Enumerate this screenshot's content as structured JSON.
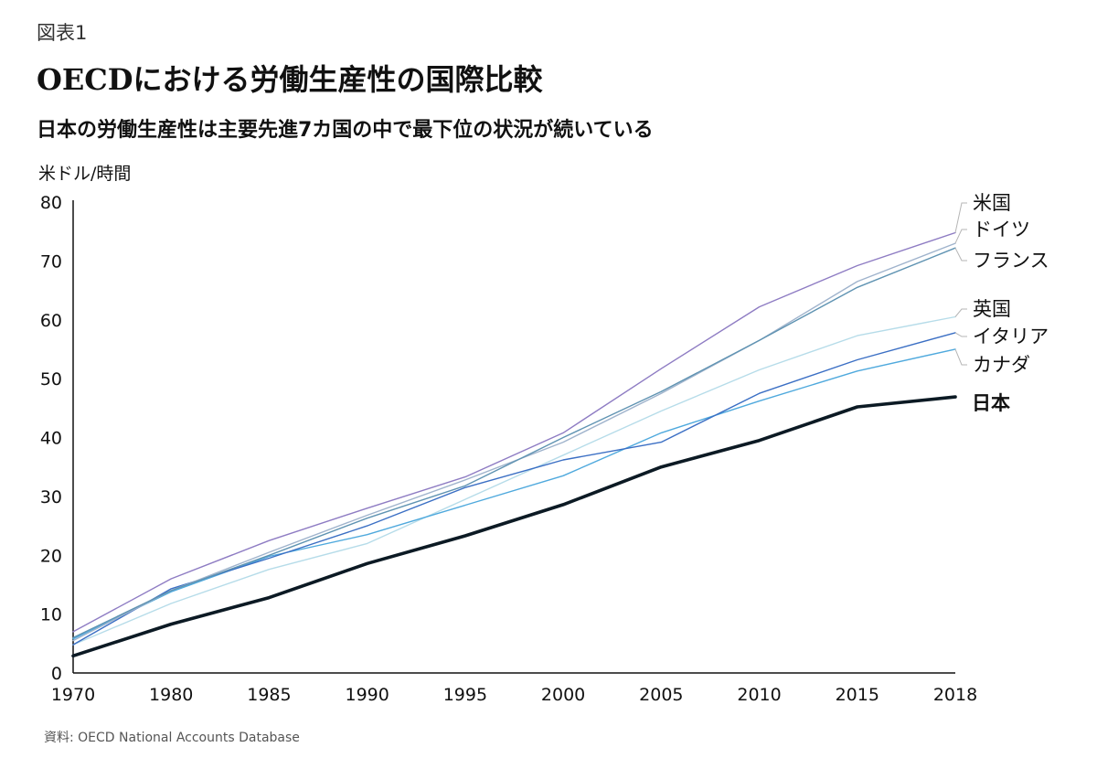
{
  "header": {
    "figure_label": "図表1",
    "title": "OECDにおける労働生産性の国際比較",
    "subtitle": "日本の労働生産性は主要先進7カ国の中で最下位の状況が続いている"
  },
  "footer": {
    "source": "資料: OECD National Accounts Database"
  },
  "chart_data": {
    "type": "line",
    "title": "OECDにおける労働生産性の国際比較",
    "ylabel": "米ドル/時間",
    "xlabel": "",
    "x": [
      1970,
      1980,
      1985,
      1990,
      1995,
      2000,
      2005,
      2010,
      2015,
      2018
    ],
    "ylim": [
      0,
      80
    ],
    "yticks": [
      0,
      10,
      20,
      30,
      40,
      50,
      60,
      70,
      80
    ],
    "grid": false,
    "legend_position": "right",
    "series": [
      {
        "name": "米国",
        "color": "#8e7cc3",
        "width": 1.4,
        "values": [
          7,
          16,
          22.5,
          28,
          33.3,
          40.8,
          51.7,
          62.2,
          69.2,
          74.8
        ]
      },
      {
        "name": "ドイツ",
        "color": "#9fb3cc",
        "width": 1.4,
        "values": [
          5.5,
          14,
          20.5,
          26.8,
          32.8,
          39.2,
          47.5,
          56.5,
          66.5,
          73
        ]
      },
      {
        "name": "フランス",
        "color": "#5f93b2",
        "width": 1.4,
        "values": [
          6,
          14,
          20,
          26.3,
          31.8,
          40,
          47.8,
          56.5,
          65.5,
          72.2
        ]
      },
      {
        "name": "英国",
        "color": "#b6dce9",
        "width": 1.4,
        "values": [
          4.8,
          11.8,
          17.6,
          22,
          29.5,
          37,
          44.5,
          51.5,
          57.3,
          60.5
        ]
      },
      {
        "name": "イタリア",
        "color": "#3b6fc4",
        "width": 1.4,
        "values": [
          4.8,
          14.3,
          19.5,
          25,
          31.5,
          36.2,
          39.2,
          47.5,
          53.2,
          57.8
        ]
      },
      {
        "name": "カナダ",
        "color": "#4fa9dd",
        "width": 1.4,
        "values": [
          5.8,
          13.8,
          19.8,
          23.5,
          28.5,
          33.5,
          40.8,
          46.2,
          51.3,
          55
        ]
      },
      {
        "name": "日本",
        "color": "#0c1a24",
        "width": 3.6,
        "bold": true,
        "values": [
          2.9,
          8.3,
          12.8,
          18.6,
          23.3,
          28.6,
          35,
          39.5,
          45.2,
          46.9
        ]
      }
    ]
  }
}
